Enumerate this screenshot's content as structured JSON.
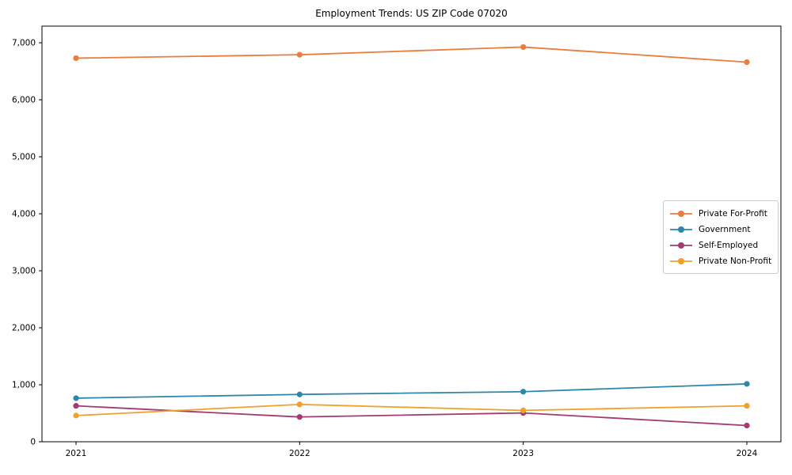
{
  "chart_data": {
    "type": "line",
    "title": "Employment Trends: US ZIP Code 07020",
    "x": [
      "2021",
      "2022",
      "2023",
      "2024"
    ],
    "series": [
      {
        "name": "Private For-Profit",
        "color": "#E87D3E",
        "values": [
          6730,
          6790,
          6925,
          6660
        ]
      },
      {
        "name": "Government",
        "color": "#2E86AB",
        "values": [
          765,
          830,
          878,
          1015
        ]
      },
      {
        "name": "Self-Employed",
        "color": "#A23B72",
        "values": [
          630,
          435,
          505,
          285
        ]
      },
      {
        "name": "Private Non-Profit",
        "color": "#F0A02D",
        "values": [
          460,
          655,
          550,
          630
        ]
      }
    ],
    "ylim": [
      0,
      7292
    ],
    "yticks": [
      0,
      1000,
      2000,
      3000,
      4000,
      5000,
      6000,
      7000
    ],
    "ytick_labels": [
      "0",
      "1,000",
      "2,000",
      "3,000",
      "4,000",
      "5,000",
      "6,000",
      "7,000"
    ],
    "xlabel": "",
    "ylabel": "",
    "grid": false,
    "frame": true,
    "marker": "circle",
    "legend_position": "center right",
    "axis_color": "#000000",
    "text_color": "#000000",
    "background_color": "#ffffff"
  }
}
